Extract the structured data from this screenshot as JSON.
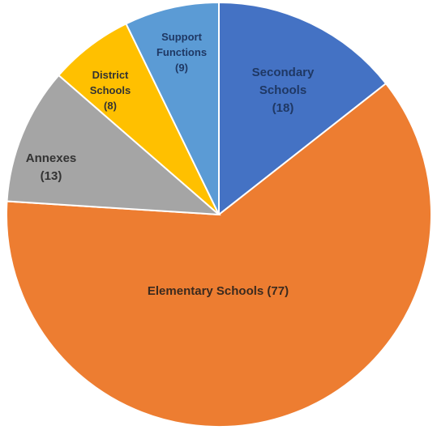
{
  "chart_data": {
    "type": "pie",
    "title": "",
    "start_angle_deg": -90,
    "direction": "clockwise",
    "slices": [
      {
        "name": "Secondary Schools",
        "value": 18,
        "color": "#4472C4",
        "label_lines": [
          "Secondary",
          "Schools",
          "(18)"
        ],
        "label_color": "#1F3864"
      },
      {
        "name": "Elementary Schools",
        "value": 77,
        "color": "#ED7D31",
        "label_lines": [
          "Elementary Schools (77)"
        ],
        "label_color": "#3B2A1E"
      },
      {
        "name": "Annexes",
        "value": 13,
        "color": "#A5A5A5",
        "label_lines": [
          "Annexes",
          "(13)"
        ],
        "label_color": "#333333"
      },
      {
        "name": "District Schools",
        "value": 8,
        "color": "#FFC000",
        "label_lines": [
          "District",
          "Schools",
          "(8)"
        ],
        "label_color": "#333333"
      },
      {
        "name": "Support Functions",
        "value": 9,
        "color": "#5B9BD5",
        "label_lines": [
          "Support",
          "Functions",
          "(9)"
        ],
        "label_color": "#1F3864"
      }
    ]
  }
}
